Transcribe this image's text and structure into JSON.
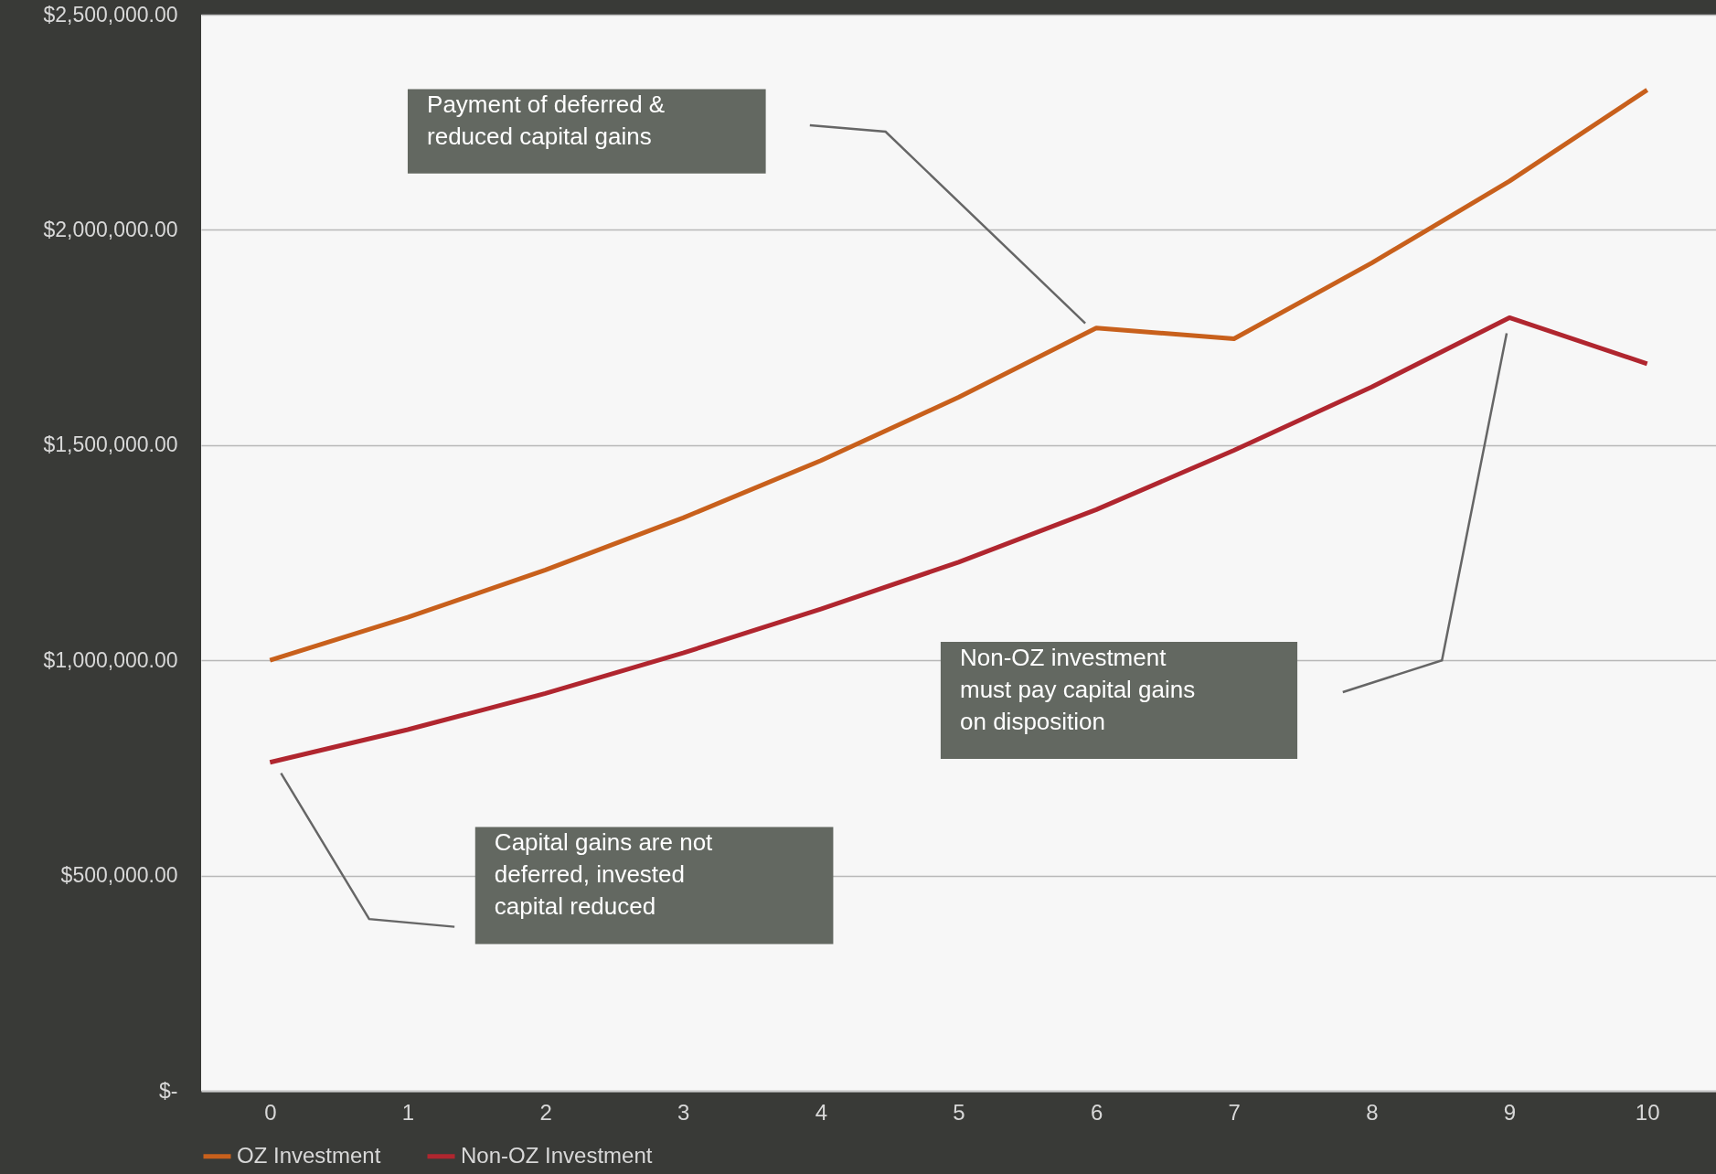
{
  "chart_data": {
    "type": "line",
    "x": [
      0,
      1,
      2,
      3,
      4,
      5,
      6,
      7,
      8,
      9,
      10
    ],
    "series": [
      {
        "name": "OZ Investment",
        "color": "#c8601c",
        "values": [
          1000000,
          1100000,
          1210000,
          1331000,
          1464000,
          1611000,
          1772000,
          1747000,
          1923000,
          2113000,
          2325000
        ]
      },
      {
        "name": "Non-OZ Investment",
        "color": "#b0262f",
        "values": [
          763000,
          839000,
          923000,
          1017000,
          1119000,
          1228000,
          1350000,
          1488000,
          1635000,
          1796000,
          1689000
        ]
      }
    ],
    "xlim": [
      -0.5,
      10.5
    ],
    "xticks": [
      0,
      1,
      2,
      3,
      4,
      5,
      6,
      7,
      8,
      9,
      10
    ],
    "ylim": [
      0,
      2500000
    ],
    "yticks": [
      {
        "value": 0,
        "label": "$-"
      },
      {
        "value": 500000,
        "label": "$500,000.00"
      },
      {
        "value": 1000000,
        "label": "$1,000,000.00"
      },
      {
        "value": 1500000,
        "label": "$1,500,000.00"
      },
      {
        "value": 2000000,
        "label": "$2,000,000.00"
      },
      {
        "value": 2500000,
        "label": "$2,500,000.00"
      }
    ],
    "grid": "y",
    "legend": "bottom",
    "marker": "none",
    "line_style": "solid",
    "annotations": [
      "Payment of deferred &\nreduced capital gains",
      "Non-OZ investment\nmust pay capital gains\non disposition",
      "Capital gains are not\ndeferred, invested\ncapital reduced"
    ]
  }
}
